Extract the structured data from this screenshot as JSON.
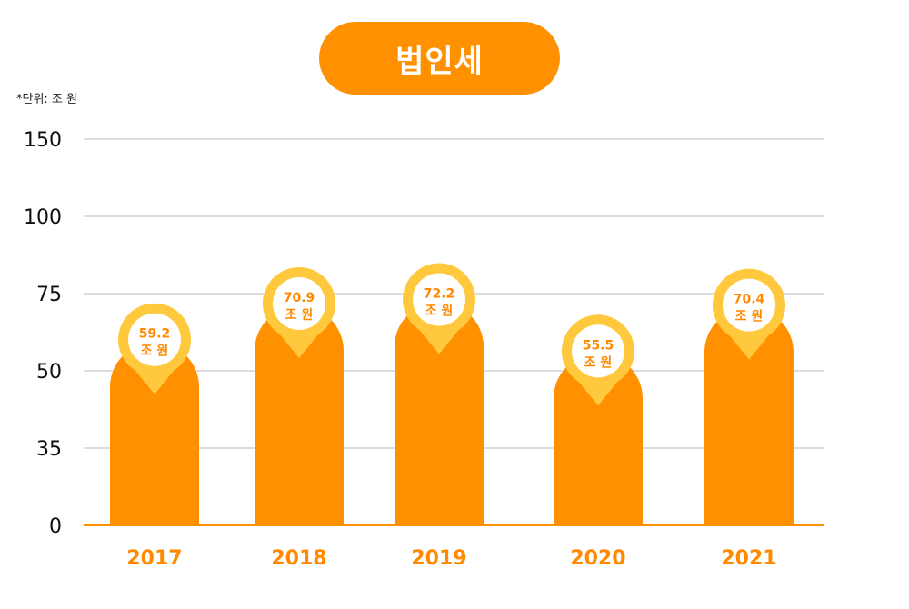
{
  "chart_data": {
    "type": "bar",
    "title": "법인세",
    "unit_note": "*단위: 조 원",
    "categories": [
      "2017",
      "2018",
      "2019",
      "2020",
      "2021"
    ],
    "values": [
      59.2,
      70.9,
      72.2,
      55.5,
      70.4
    ],
    "value_labels": [
      "59.2",
      "70.9",
      "72.2",
      "55.5",
      "70.4"
    ],
    "value_unit": "조 원",
    "y_ticks": [
      "0",
      "35",
      "50",
      "75",
      "100",
      "150"
    ],
    "colors": {
      "bar": "#ff9100",
      "pin": "#ffc83d",
      "label": "#ff8a00",
      "grid": "#bbbbbb"
    }
  }
}
